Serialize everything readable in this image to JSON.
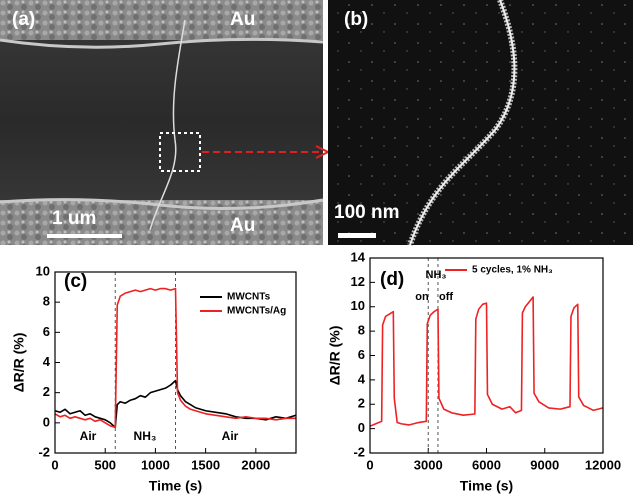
{
  "images": [
    {
      "label": "(a)",
      "top_text": "Au",
      "bottom_text": "Au",
      "scale_bar": "1 um"
    },
    {
      "label": "(b)",
      "scale_bar": "100 nm"
    }
  ],
  "chart_data": [
    {
      "type": "line",
      "panel": "(c)",
      "xlabel": "Time (s)",
      "ylabel": "ΔR/R (%)",
      "xlim": [
        0,
        2400
      ],
      "xticks": [
        0,
        500,
        1000,
        1500,
        2000
      ],
      "ylim": [
        -2,
        10
      ],
      "yticks": [
        -2,
        0,
        2,
        4,
        6,
        8,
        10
      ],
      "vlines": [
        600,
        1200
      ],
      "annotations": [
        "Air",
        "NH₃",
        "Air"
      ],
      "x": [
        0,
        50,
        100,
        150,
        200,
        250,
        300,
        350,
        400,
        450,
        500,
        550,
        600,
        620,
        650,
        700,
        750,
        800,
        850,
        900,
        950,
        1000,
        1050,
        1100,
        1150,
        1200,
        1220,
        1250,
        1300,
        1350,
        1400,
        1450,
        1500,
        1600,
        1700,
        1800,
        1900,
        2000,
        2100,
        2200,
        2300,
        2400
      ],
      "series": [
        {
          "name": "MWCNTs",
          "color": "#000000",
          "values": [
            0.8,
            0.7,
            0.9,
            0.6,
            0.7,
            0.8,
            0.5,
            0.6,
            0.4,
            0.3,
            0.2,
            0.0,
            -0.3,
            1.2,
            1.4,
            1.3,
            1.5,
            1.6,
            1.8,
            1.7,
            2.0,
            2.1,
            2.2,
            2.3,
            2.5,
            2.8,
            2.2,
            1.8,
            1.4,
            1.2,
            1.0,
            0.9,
            0.8,
            0.7,
            0.6,
            0.4,
            0.3,
            0.3,
            0.2,
            0.4,
            0.3,
            0.5
          ]
        },
        {
          "name": "MWCNTs/Ag",
          "color": "#ee2222",
          "values": [
            0.6,
            0.4,
            0.5,
            0.3,
            0.4,
            0.3,
            0.2,
            0.3,
            0.1,
            0.2,
            0.0,
            -0.2,
            -0.3,
            7.8,
            8.4,
            8.6,
            8.7,
            8.8,
            8.7,
            8.8,
            8.9,
            8.8,
            8.9,
            8.9,
            8.8,
            8.9,
            2.0,
            1.5,
            1.1,
            0.9,
            0.8,
            0.7,
            0.6,
            0.5,
            0.4,
            0.3,
            0.4,
            0.3,
            0.3,
            0.2,
            0.3,
            0.3
          ]
        }
      ]
    },
    {
      "type": "line",
      "panel": "(d)",
      "xlabel": "Time (s)",
      "ylabel": "ΔR/R (%)",
      "xlim": [
        0,
        12000
      ],
      "xticks": [
        0,
        3000,
        6000,
        9000,
        12000
      ],
      "ylim": [
        -2,
        14
      ],
      "yticks": [
        -2,
        0,
        2,
        4,
        6,
        8,
        10,
        12,
        14
      ],
      "vlines": [
        3000,
        3500
      ],
      "annotations": [
        "NH₃",
        "on",
        "off"
      ],
      "x": [
        0,
        300,
        600,
        650,
        800,
        1000,
        1200,
        1250,
        1400,
        1600,
        2000,
        2500,
        2900,
        2950,
        3100,
        3300,
        3500,
        3550,
        3800,
        4200,
        4800,
        5400,
        5450,
        5600,
        5800,
        6000,
        6050,
        6300,
        6800,
        7200,
        7500,
        7800,
        7850,
        8000,
        8200,
        8400,
        8450,
        8700,
        9200,
        9800,
        10300,
        10350,
        10500,
        10700,
        10750,
        11000,
        11500,
        12000
      ],
      "series": [
        {
          "name": "5 cycles, 1% NH₃",
          "color": "#ee2222",
          "values": [
            0.2,
            0.4,
            0.6,
            8.5,
            9.2,
            9.4,
            9.6,
            2.5,
            0.5,
            0.4,
            0.3,
            0.5,
            0.6,
            8.6,
            9.3,
            9.6,
            9.8,
            2.5,
            1.6,
            1.3,
            1.1,
            1.2,
            9.0,
            9.8,
            10.2,
            10.3,
            2.8,
            2.0,
            1.6,
            1.8,
            1.3,
            1.5,
            9.5,
            10.0,
            10.4,
            10.8,
            2.9,
            2.2,
            1.7,
            1.6,
            1.8,
            9.2,
            9.9,
            10.2,
            2.6,
            1.9,
            1.5,
            1.7
          ]
        }
      ]
    }
  ]
}
